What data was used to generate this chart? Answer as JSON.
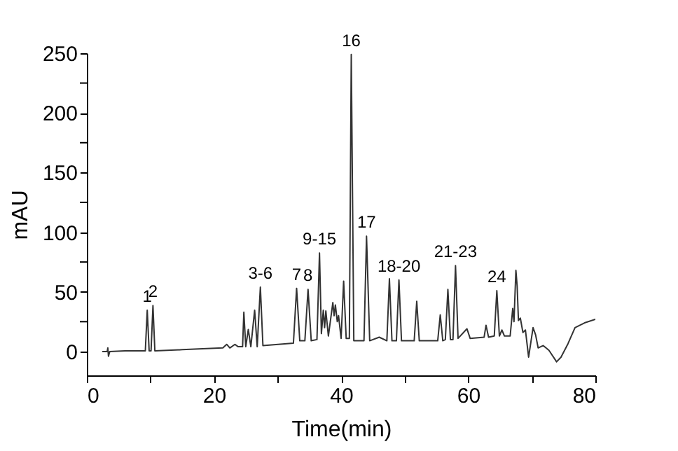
{
  "chart_data": {
    "type": "line",
    "xlabel": "Time(min)",
    "ylabel": "mAU",
    "x": [
      2.5,
      3.2,
      3.3,
      3.4,
      3.6,
      6,
      9.2,
      9.5,
      9.8,
      10.1,
      10.4,
      10.7,
      15,
      21.4,
      22,
      22.5,
      23.3,
      23.8,
      24.5,
      24.7,
      25.0,
      25.4,
      25.8,
      26.4,
      26.8,
      27.3,
      27.7,
      32.5,
      33.0,
      33.5,
      34.3,
      34.8,
      35.3,
      36.2,
      36.6,
      36.9,
      37.2,
      37.4,
      37.6,
      38.0,
      38.7,
      38.9,
      39.1,
      39.4,
      39.6,
      40.0,
      40.4,
      40.8,
      41.3,
      41.6,
      42.0,
      43.6,
      44.0,
      44.5,
      46,
      47.2,
      47.6,
      48.0,
      48.7,
      49.1,
      49.5,
      51.5,
      51.9,
      52.3,
      55.2,
      55.6,
      56.0,
      56.4,
      56.8,
      57.2,
      57.6,
      58.0,
      58.4,
      59.8,
      60.3,
      62.5,
      62.8,
      63.2,
      64.1,
      64.5,
      64.9,
      65.3,
      65.7,
      66.6,
      67.0,
      67.2,
      67.5,
      67.7,
      67.9,
      68.2,
      68.6,
      69.0,
      69.5,
      70.2,
      70.6,
      71.0,
      71.8,
      72.7,
      73.9,
      74.6,
      75.7,
      76.8,
      78.3,
      80
    ],
    "series": [
      {
        "color": "#333333",
        "values": [
          0,
          0,
          3,
          -4,
          0,
          0.5,
          0.5,
          34.6,
          0.5,
          0.5,
          38.5,
          0.5,
          1.5,
          3,
          6,
          3,
          6,
          4,
          4,
          33,
          4,
          18.5,
          4,
          34.6,
          4,
          54,
          5,
          7,
          53,
          9,
          9,
          52,
          9,
          10,
          82.5,
          15,
          34.6,
          20,
          34,
          13,
          41,
          30,
          39,
          25,
          30,
          11,
          59,
          11,
          11,
          249,
          9,
          9,
          96.7,
          9,
          12,
          9,
          61,
          9,
          9,
          60,
          9,
          9,
          42,
          9,
          9,
          30.7,
          9,
          10,
          52,
          10,
          10,
          72,
          11,
          19,
          11,
          12,
          22,
          12,
          13,
          51,
          13,
          18,
          13,
          13,
          36,
          25,
          68,
          54.6,
          26,
          28,
          16,
          18,
          -4.7,
          20,
          14,
          3,
          5,
          1,
          -8.6,
          -4.7,
          6.6,
          20,
          24,
          27
        ]
      }
    ],
    "xlim": [
      0,
      80
    ],
    "ylim": [
      -20,
      250
    ],
    "xticks": [
      0,
      {
        "value": 10,
        "label": null
      },
      20,
      {
        "value": 30,
        "label": null
      },
      40,
      {
        "value": 50,
        "label": null
      },
      60,
      {
        "value": 70,
        "label": null
      },
      80
    ],
    "yticks": [
      0,
      {
        "value": 25,
        "label": null
      },
      50,
      {
        "value": 75,
        "label": null
      },
      100,
      {
        "value": 125,
        "label": null
      },
      150,
      {
        "value": 175,
        "label": null
      },
      200,
      {
        "value": 225,
        "label": null
      },
      250
    ],
    "grid": false,
    "line_style": "solid",
    "marker": "none",
    "annotations": [
      {
        "text": "1",
        "x": 9.5,
        "y": 34.6
      },
      {
        "text": "2",
        "x": 10.4,
        "y": 38.5
      },
      {
        "text": "3-6",
        "x": 27.3,
        "y": 54
      },
      {
        "text": "7",
        "x": 33.0,
        "y": 53
      },
      {
        "text": "8",
        "x": 34.8,
        "y": 52
      },
      {
        "text": "9-15",
        "x": 36.6,
        "y": 82.5
      },
      {
        "text": "16",
        "x": 41.6,
        "y": 249
      },
      {
        "text": "17",
        "x": 44.0,
        "y": 96.7
      },
      {
        "text": "18-20",
        "x": 49.1,
        "y": 60
      },
      {
        "text": "21-23",
        "x": 58.0,
        "y": 72
      },
      {
        "text": "24",
        "x": 64.5,
        "y": 51
      }
    ]
  }
}
